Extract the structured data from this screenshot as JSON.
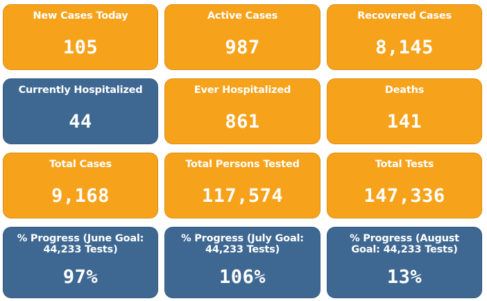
{
  "colors": {
    "orange": "#f7a21b",
    "blue": "#3e6892",
    "text": "#ffffff"
  },
  "tiles": [
    {
      "label": "New Cases Today",
      "value": "105",
      "color": "orange"
    },
    {
      "label": "Active Cases",
      "value": "987",
      "color": "orange"
    },
    {
      "label": "Recovered Cases",
      "value": "8,145",
      "color": "orange"
    },
    {
      "label": "Currently Hospitalized",
      "value": "44",
      "color": "blue"
    },
    {
      "label": "Ever Hospitalized",
      "value": "861",
      "color": "orange"
    },
    {
      "label": "Deaths",
      "value": "141",
      "color": "orange"
    },
    {
      "label": "Total Cases",
      "value": "9,168",
      "color": "orange"
    },
    {
      "label": "Total Persons Tested",
      "value": "117,574",
      "color": "orange"
    },
    {
      "label": "Total Tests",
      "value": "147,336",
      "color": "orange"
    },
    {
      "label": "% Progress (June Goal: 44,233 Tests)",
      "value": "97%",
      "color": "blue"
    },
    {
      "label": "% Progress (July Goal: 44,233 Tests)",
      "value": "106%",
      "color": "blue"
    },
    {
      "label": "% Progress (August Goal: 44,233 Tests)",
      "value": "13%",
      "color": "blue"
    }
  ]
}
